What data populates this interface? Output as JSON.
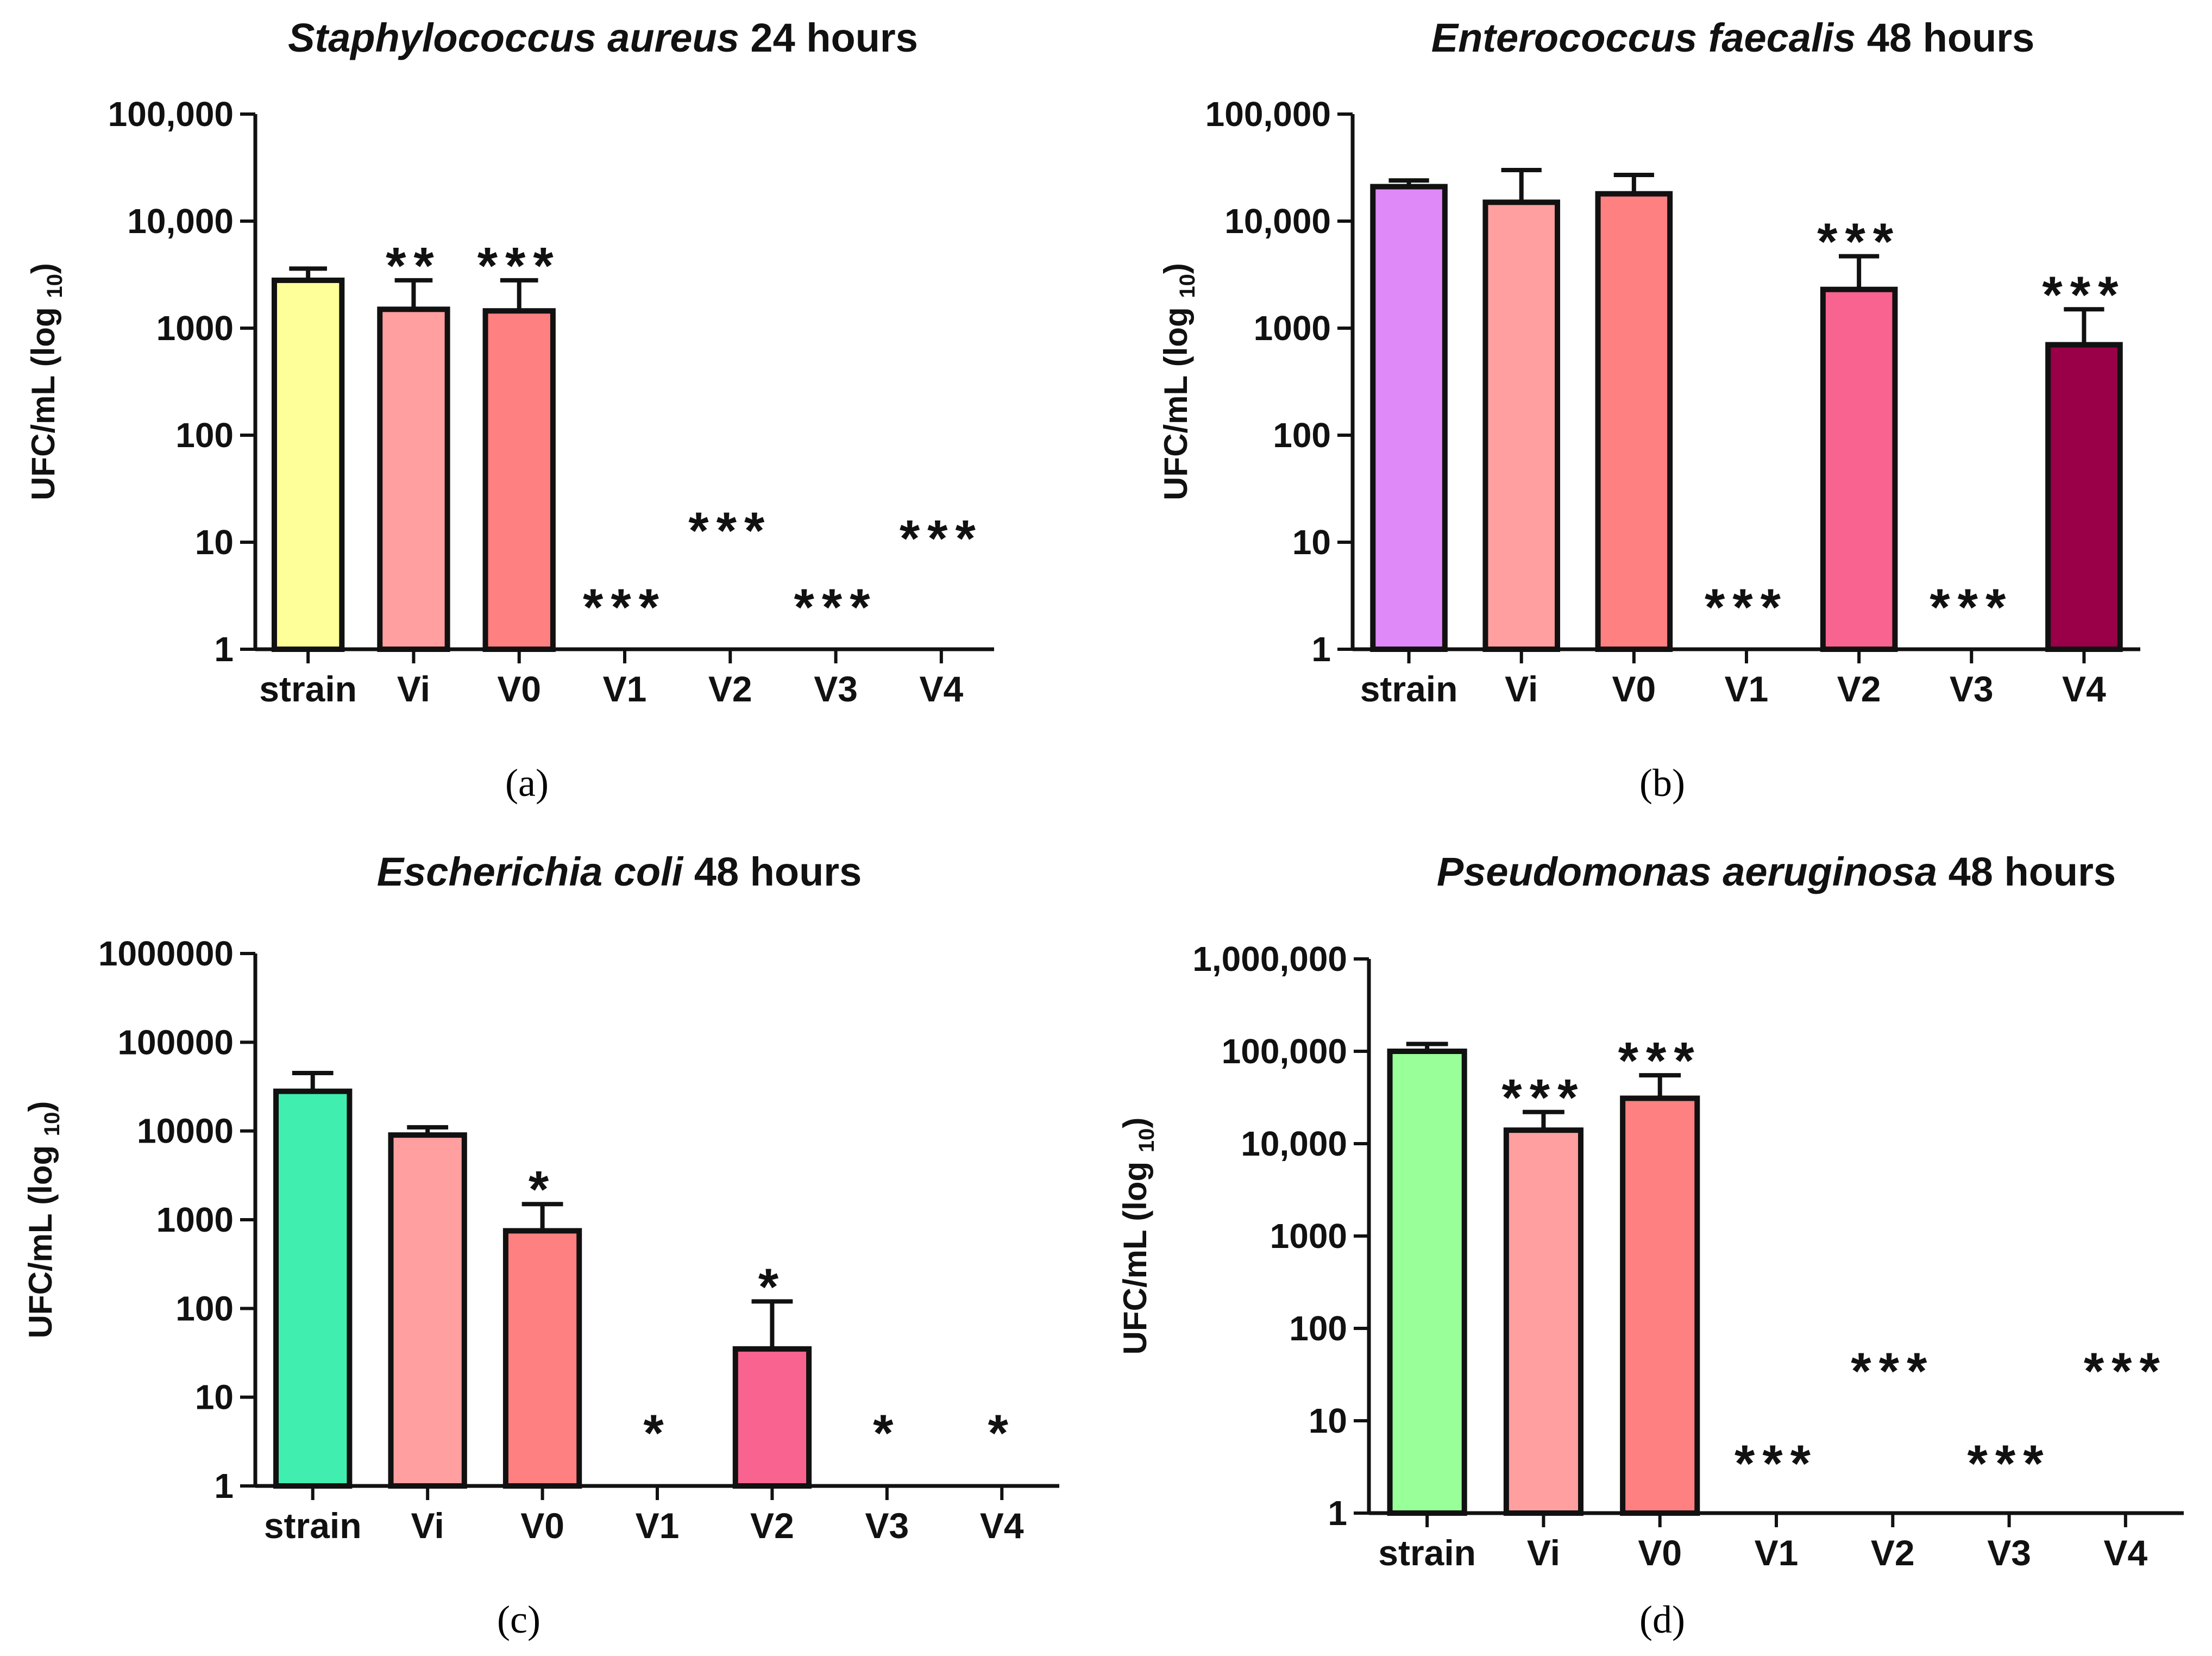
{
  "chart_data": [
    {
      "type": "bar",
      "title_italic": "Staphylococcus aureus",
      "title_rest": " 24 hours",
      "ylabel": "UFC/mL (log ",
      "ylabel_sub": "10",
      "ylabel_close": ")",
      "yscale": "log",
      "ylim": [
        1,
        100000
      ],
      "yticks": [
        1,
        10,
        100,
        1000,
        10000,
        100000
      ],
      "yticklabels": [
        "1",
        "10",
        "100",
        "1000",
        "10,000",
        "100,000"
      ],
      "categories": [
        "strain",
        "Vi",
        "V0",
        "V1",
        "V2",
        "V3",
        "V4"
      ],
      "values": [
        2800,
        1500,
        1450,
        null,
        null,
        null,
        null
      ],
      "errors_upper": [
        3600,
        2800,
        2800,
        null,
        null,
        null,
        null
      ],
      "colors": [
        "#ffff99",
        "#ff9f9f",
        "#ff8080",
        null,
        null,
        null,
        null
      ],
      "significance": [
        "",
        "**",
        "***",
        "***",
        "***",
        "***",
        "***"
      ],
      "sig_level": [
        null,
        null,
        null,
        2.5,
        13,
        2.5,
        11
      ],
      "caption": "(a)"
    },
    {
      "type": "bar",
      "title_italic": "Enterococcus faecalis",
      "title_rest": " 48 hours",
      "ylabel": "UFC/mL (log ",
      "ylabel_sub": "10",
      "ylabel_close": ")",
      "yscale": "log",
      "ylim": [
        1,
        100000
      ],
      "yticks": [
        1,
        10,
        100,
        1000,
        10000,
        100000
      ],
      "yticklabels": [
        "1",
        "10",
        "100",
        "1000",
        "10,000",
        "100,000"
      ],
      "categories": [
        "strain",
        "Vi",
        "V0",
        "V1",
        "V2",
        "V3",
        "V4"
      ],
      "values": [
        21000,
        15000,
        18000,
        null,
        2300,
        null,
        700
      ],
      "errors_upper": [
        24000,
        30000,
        27000,
        null,
        4700,
        null,
        1500
      ],
      "colors": [
        "#df88f7",
        "#ff9f9f",
        "#ff8080",
        null,
        "#f8638f",
        null,
        "#990047"
      ],
      "significance": [
        "",
        "",
        "",
        "***",
        "***",
        "***",
        "***"
      ],
      "sig_level": [
        null,
        null,
        null,
        2.5,
        null,
        2.5,
        null
      ],
      "caption": "(b)"
    },
    {
      "type": "bar",
      "title_italic": "Escherichia coli",
      "title_rest": " 48 hours",
      "ylabel": "UFC/mL (log ",
      "ylabel_sub": "10",
      "ylabel_close": ")",
      "yscale": "log",
      "ylim": [
        1,
        1000000
      ],
      "yticks": [
        1,
        10,
        100,
        1000,
        10000,
        100000,
        1000000
      ],
      "yticklabels": [
        "1",
        "10",
        "100",
        "1000",
        "10000",
        "100000",
        "1000000"
      ],
      "categories": [
        "strain",
        "Vi",
        "V0",
        "V1",
        "V2",
        "V3",
        "V4"
      ],
      "values": [
        28000,
        9000,
        750,
        null,
        35,
        null,
        null
      ],
      "errors_upper": [
        45000,
        11000,
        1500,
        null,
        120,
        null,
        null
      ],
      "colors": [
        "#40efaf",
        "#ff9f9f",
        "#ff8080",
        null,
        "#f8638f",
        null,
        null
      ],
      "significance": [
        "",
        "",
        "*",
        "*",
        "*",
        "*",
        "*"
      ],
      "sig_level": [
        null,
        null,
        null,
        4,
        null,
        4,
        4
      ],
      "caption": "(c)"
    },
    {
      "type": "bar",
      "title_italic": "Pseudomonas aeruginosa",
      "title_rest": " 48 hours",
      "ylabel": "UFC/mL (log ",
      "ylabel_sub": "10",
      "ylabel_close": ")",
      "yscale": "log",
      "ylim": [
        1,
        1000000
      ],
      "yticks": [
        1,
        10,
        100,
        1000,
        10000,
        100000,
        1000000
      ],
      "yticklabels": [
        "1",
        "10",
        "100",
        "1000",
        "10,000",
        "100,000",
        "1,000,000"
      ],
      "categories": [
        "strain",
        "Vi",
        "V0",
        "V1",
        "V2",
        "V3",
        "V4"
      ],
      "values": [
        100000,
        14000,
        31000,
        null,
        null,
        null,
        null
      ],
      "errors_upper": [
        120000,
        22000,
        55000,
        null,
        null,
        null,
        null
      ],
      "colors": [
        "#99ff99",
        "#ff9f9f",
        "#ff8080",
        null,
        null,
        null,
        null
      ],
      "significance": [
        "",
        "***",
        "***",
        "***",
        "***",
        "***",
        "***"
      ],
      "sig_level": [
        null,
        null,
        null,
        3.5,
        35,
        3.5,
        35
      ],
      "caption": "(d)"
    }
  ]
}
